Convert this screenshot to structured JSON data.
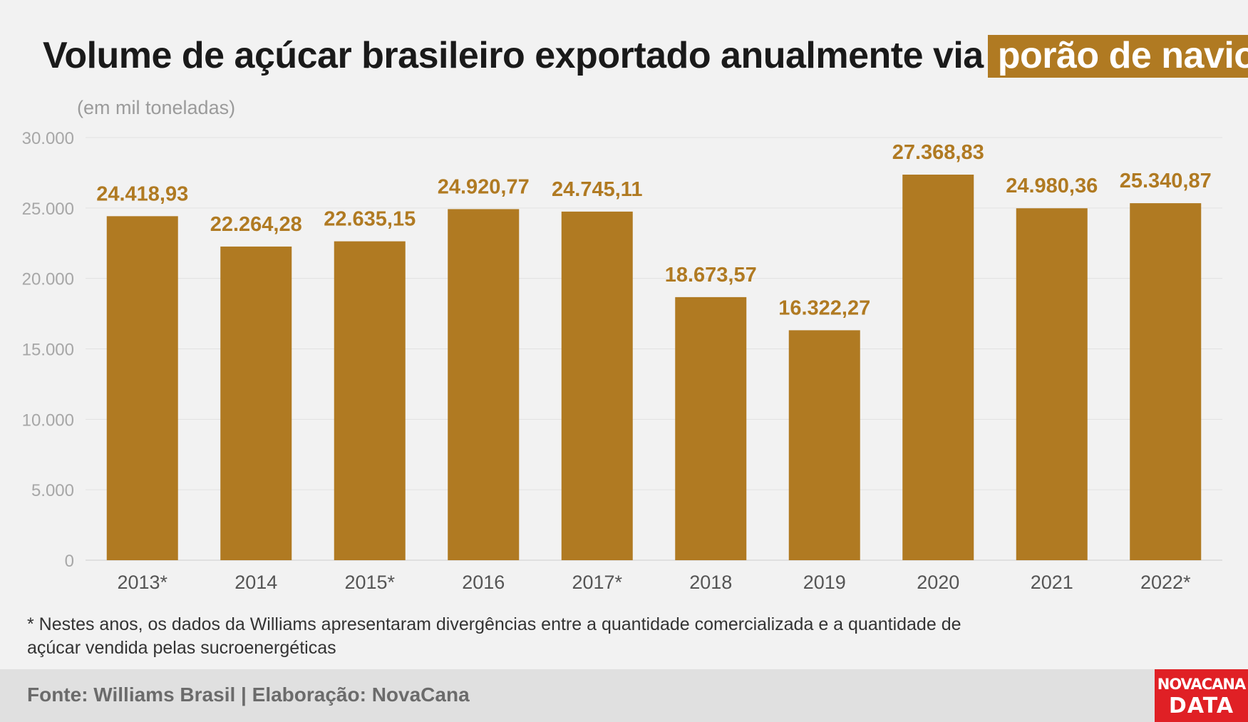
{
  "title": {
    "main": "Volume de açúcar brasileiro exportado anualmente via",
    "highlight": "porão de navio"
  },
  "unit_note": "(em mil toneladas)",
  "footnote": "* Nestes anos, os dados da Williams apresentaram divergências entre a quantidade comercializada e a quantidade de açúcar vendida pelas sucroenergéticas",
  "source": "Fonte: Williams Brasil | Elaboração: NovaCana",
  "logo": {
    "line1": "NOVACANA",
    "line2": "DATA"
  },
  "colors": {
    "bar": "#b07a22",
    "background": "#f2f2f2",
    "logo": "#e02025"
  },
  "chart_data": {
    "type": "bar",
    "categories": [
      "2013*",
      "2014",
      "2015*",
      "2016",
      "2017*",
      "2018",
      "2019",
      "2020",
      "2021",
      "2022*"
    ],
    "values": [
      24418.93,
      22264.28,
      22635.15,
      24920.77,
      24745.11,
      18673.57,
      16322.27,
      27368.83,
      24980.36,
      25340.87
    ],
    "value_labels": [
      "24.418,93",
      "22.264,28",
      "22.635,15",
      "24.920,77",
      "24.745,11",
      "18.673,57",
      "16.322,27",
      "27.368,83",
      "24.980,36",
      "25.340,87"
    ],
    "ylim": [
      0,
      30000
    ],
    "yticks": [
      0,
      5000,
      10000,
      15000,
      20000,
      25000,
      30000
    ],
    "ytick_labels": [
      "0",
      "5.000",
      "10.000",
      "15.000",
      "20.000",
      "25.000",
      "30.000"
    ],
    "grid": true,
    "ylabel": "(em mil toneladas)"
  }
}
